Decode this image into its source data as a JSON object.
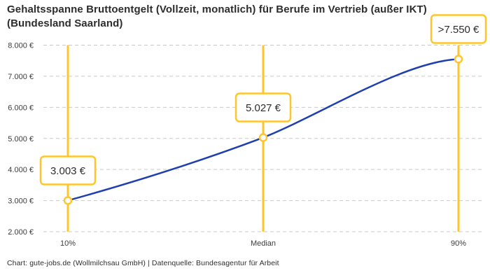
{
  "title": {
    "line1": "Gehaltsspanne Bruttoentgelt (Vollzeit, monatlich) für Berufe im Vertrieb (außer IKT)",
    "line2": "(Bundesland Saarland)"
  },
  "footer": {
    "text": "Chart: gute-jobs.de (Wollmilchsau GmbH) | Datenquelle: Bundesagentur für Arbeit"
  },
  "colors": {
    "accent_yellow": "#FFC52E",
    "series_blue": "#1F3FAE",
    "grid_gray": "#C9C9C9",
    "title_text": "#2D2D2D",
    "axis_text": "#3C3C3C",
    "label_box_bg": "#FFFFFF"
  },
  "chart_data": {
    "type": "line",
    "title": "Gehaltsspanne Bruttoentgelt (Vollzeit, monatlich) für Berufe im Vertrieb (außer IKT) (Bundesland Saarland)",
    "categories": [
      "10%",
      "Median",
      "90%"
    ],
    "x_percentiles": [
      10,
      50,
      90
    ],
    "values": [
      3003,
      5027,
      7550
    ],
    "value_labels": [
      "3.003 €",
      "5.027 €",
      ">7.550 €"
    ],
    "y_ticks": [
      2000,
      3000,
      4000,
      5000,
      6000,
      7000,
      8000
    ],
    "y_tick_labels": [
      "2.000 €",
      "3.000 €",
      "4.000 €",
      "5.000 €",
      "6.000 €",
      "7.000 €",
      "8.000 €"
    ],
    "ylim": [
      2000,
      8000
    ],
    "xlabel": "",
    "ylabel": "",
    "grid": "horizontal-dashed",
    "legend_position": "none",
    "marker": "open-circle",
    "annotations": "yellow vertical percentile lines with framed value labels"
  }
}
